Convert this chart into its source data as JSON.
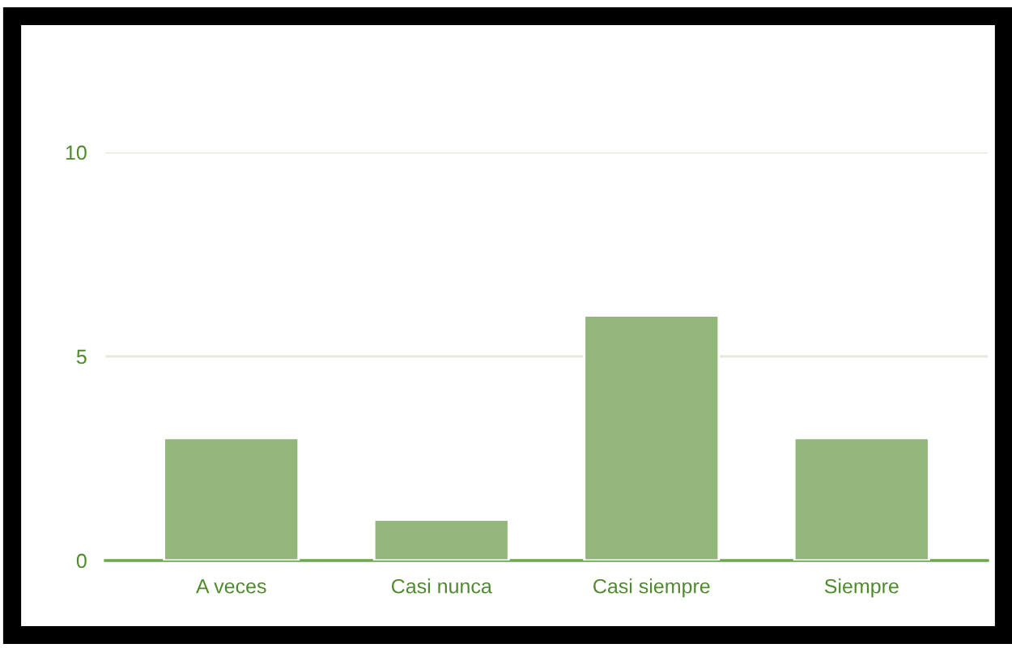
{
  "chart_data": {
    "type": "bar",
    "categories": [
      "A veces",
      "Casi nunca",
      "Casi siempre",
      "Siempre"
    ],
    "values": [
      3,
      1,
      6,
      3
    ],
    "color": "#93b77a",
    "ylim": [
      0,
      10
    ],
    "yticks": [
      0,
      5,
      10
    ],
    "grid": "y"
  }
}
